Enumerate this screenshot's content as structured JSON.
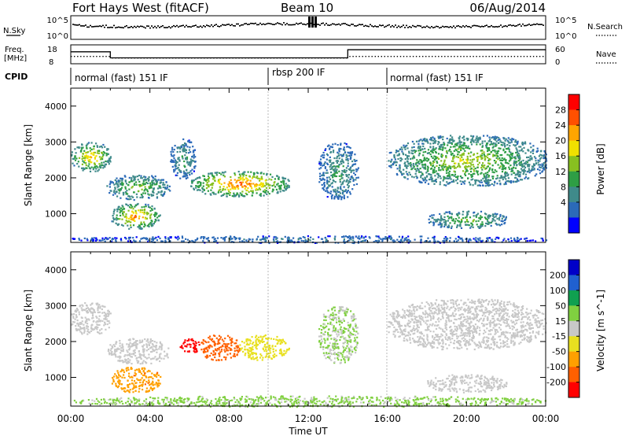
{
  "header": {
    "station": "Fort Hays West (fitACF)",
    "beam": "Beam 10",
    "date": "06/Aug/2014"
  },
  "top_panels": {
    "nsky_label": "N.Sky",
    "nsky_ticks": [
      "10^5",
      "10^0"
    ],
    "nsearch_label": "N.Search",
    "nsearch_ticks": [
      "10^5",
      "10^0"
    ],
    "freq_label_1": "Freq.",
    "freq_label_2": "[MHz]",
    "freq_ticks": [
      "18",
      "8"
    ],
    "nave_label": "Nave",
    "nave_ticks": [
      "60",
      "0"
    ],
    "cpid_label": "CPID",
    "cpid_segments": [
      "normal (fast) 151 IF",
      "rbsp 200 IF",
      "normal (fast) 151 IF"
    ]
  },
  "colors": {
    "power": [
      "#0000ff",
      "#2b6ab8",
      "#3f8a8a",
      "#2e9e45",
      "#88c020",
      "#f0e000",
      "#ffa500",
      "#ff5000",
      "#ff0000"
    ],
    "velocity": [
      "#0000c8",
      "#2060d0",
      "#10a050",
      "#80d040",
      "#c8c8c8",
      "#e8e020",
      "#ffa000",
      "#ff6000",
      "#ff0000"
    ],
    "ground_scatter": "#c8c8c8"
  },
  "chart_data": [
    {
      "type": "heatmap",
      "title": "Power",
      "ylabel": "Slant Range [km]",
      "yticks": [
        "4000",
        "3000",
        "2000",
        "1000"
      ],
      "ylim": [
        200,
        4500
      ],
      "xlim": [
        0,
        24
      ],
      "colorbar_label": "Power [dB]",
      "colorbar_ticks": [
        "28",
        "24",
        "20",
        "16",
        "12",
        "8",
        "4"
      ],
      "clim": [
        0,
        30
      ],
      "features": [
        {
          "t": [
            0.0,
            2.0
          ],
          "r": [
            2200,
            3000
          ],
          "level": 20
        },
        {
          "t": [
            1.8,
            5.0
          ],
          "r": [
            1400,
            2100
          ],
          "level": 14
        },
        {
          "t": [
            2.0,
            4.5
          ],
          "r": [
            600,
            1300
          ],
          "level": 22
        },
        {
          "t": [
            5.0,
            6.3
          ],
          "r": [
            2000,
            3100
          ],
          "level": 10
        },
        {
          "t": [
            6.0,
            11.0
          ],
          "r": [
            1500,
            2200
          ],
          "level": 24
        },
        {
          "t": [
            12.5,
            14.5
          ],
          "r": [
            1400,
            3000
          ],
          "level": 10
        },
        {
          "t": [
            16.0,
            24.0
          ],
          "r": [
            1800,
            3200
          ],
          "level": 16
        },
        {
          "t": [
            18.0,
            22.0
          ],
          "r": [
            600,
            1100
          ],
          "level": 14
        },
        {
          "t": [
            0.0,
            24.0
          ],
          "r": [
            200,
            400
          ],
          "level": 6
        }
      ]
    },
    {
      "type": "heatmap",
      "title": "Velocity",
      "xlabel": "Time UT",
      "ylabel": "Slant Range [km]",
      "xticks": [
        "00:00",
        "04:00",
        "08:00",
        "12:00",
        "16:00",
        "20:00",
        "00:00"
      ],
      "yticks": [
        "4000",
        "3000",
        "2000",
        "1000"
      ],
      "ylim": [
        200,
        4500
      ],
      "xlim": [
        0,
        24
      ],
      "colorbar_label": "Velocity [m s^-1]",
      "colorbar_ticks": [
        "200",
        "100",
        "50",
        "15",
        "-15",
        "-50",
        "-100",
        "-200"
      ],
      "clim": [
        -250,
        250
      ],
      "features": [
        {
          "t": [
            0.0,
            2.0
          ],
          "r": [
            2200,
            3100
          ],
          "velocity": 0
        },
        {
          "t": [
            1.8,
            5.0
          ],
          "r": [
            1400,
            2100
          ],
          "velocity": 0
        },
        {
          "t": [
            2.0,
            4.5
          ],
          "r": [
            600,
            1300
          ],
          "velocity": -120
        },
        {
          "t": [
            5.5,
            6.5
          ],
          "r": [
            1700,
            2100
          ],
          "velocity": -220
        },
        {
          "t": [
            6.5,
            8.5
          ],
          "r": [
            1500,
            2200
          ],
          "velocity": -160
        },
        {
          "t": [
            8.5,
            11.0
          ],
          "r": [
            1500,
            2200
          ],
          "velocity": -60
        },
        {
          "t": [
            12.5,
            14.5
          ],
          "r": [
            1400,
            3000
          ],
          "velocity": 30
        },
        {
          "t": [
            16.0,
            24.0
          ],
          "r": [
            1800,
            3200
          ],
          "velocity": 0
        },
        {
          "t": [
            18.0,
            22.0
          ],
          "r": [
            600,
            1100
          ],
          "velocity": 0
        },
        {
          "t": [
            0.0,
            24.0
          ],
          "r": [
            200,
            500
          ],
          "velocity": 40
        }
      ]
    }
  ]
}
